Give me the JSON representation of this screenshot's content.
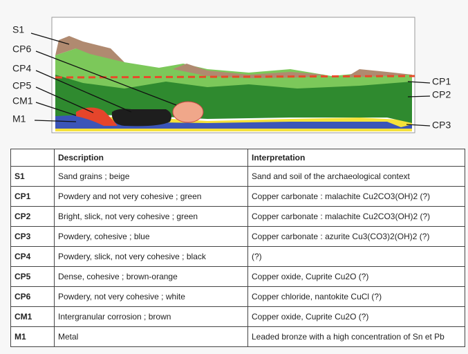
{
  "diagram": {
    "labels_left": [
      "S1",
      "CP6",
      "CP4",
      "CP5",
      "CM1",
      "M1"
    ],
    "labels_right": [
      "CP1",
      "CP2",
      "CP3"
    ]
  },
  "table": {
    "header": [
      "Description",
      "Interpretation"
    ],
    "rows": [
      [
        "S1",
        "Sand grains ; beige",
        "Sand and soil of the archaeological context"
      ],
      [
        "CP1",
        "Powdery and not very cohesive ; green",
        "Copper carbonate : malachite Cu2CO3(OH)2 (?)"
      ],
      [
        "CP2",
        "Bright, slick, not very cohesive ; green",
        "Copper carbonate : malachite Cu2CO3(OH)2 (?)"
      ],
      [
        "CP3",
        "Powdery, cohesive ; blue",
        "Copper carbonate : azurite Cu3(CO3)2(OH)2 (?)"
      ],
      [
        "CP4",
        "Powdery, slick, not very cohesive ; black",
        "(?)"
      ],
      [
        "CP5",
        "Dense, cohesive ; brown-orange",
        "Copper oxide, Cuprite Cu2O (?)"
      ],
      [
        "CP6",
        "Powdery, not very cohesive ; white",
        "Copper chloride, nantokite CuCl (?)"
      ],
      [
        "CM1",
        "Intergranular corrosion ; brown",
        "Copper oxide, Cuprite Cu2O (?)"
      ],
      [
        "M1",
        "Metal",
        "Leaded bronze with a high concentration of Sn et Pb"
      ]
    ]
  }
}
